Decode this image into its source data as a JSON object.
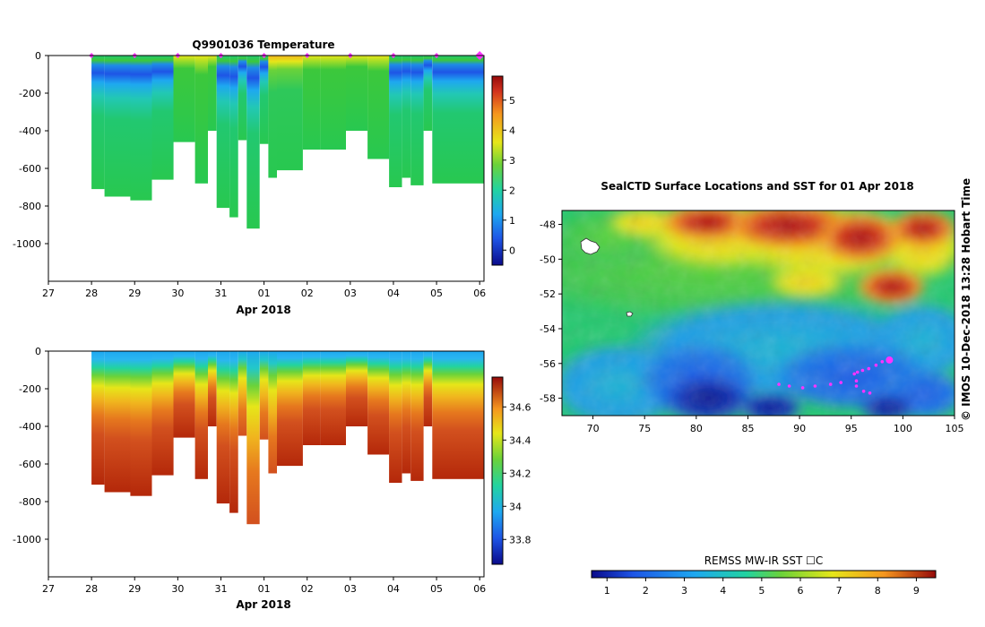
{
  "chart_data": [
    {
      "type": "heatmap",
      "panel": "temperature",
      "title": "Q9901036  Temperature",
      "xlabel": "Apr 2018",
      "ylabel": "",
      "x_tick_labels": [
        "27",
        "28",
        "29",
        "30",
        "31",
        "01",
        "02",
        "03",
        "04",
        "05",
        "06"
      ],
      "x_range_days": [
        27,
        37.1
      ],
      "y_tick_labels": [
        "0",
        "-200",
        "-400",
        "-600",
        "-800",
        "-1000"
      ],
      "y_range_m": [
        0,
        -1200
      ],
      "profile_start_days": [
        28,
        28.3,
        28.9,
        29.4,
        29.9,
        30.4,
        30.7,
        30.9,
        31.2,
        31.4,
        31.6,
        31.9,
        32.1,
        32.3,
        32.9,
        33.3,
        33.9,
        34.4,
        34.9,
        35.2,
        35.4,
        35.7,
        35.9
      ],
      "profile_max_depth_m": [
        -710,
        -750,
        -770,
        -660,
        -460,
        -680,
        -400,
        -810,
        -860,
        -450,
        -920,
        -470,
        -650,
        -610,
        -500,
        -500,
        -400,
        -550,
        -700,
        -650,
        -690,
        -400,
        -680
      ],
      "surface_markers_days": [
        28,
        29,
        30,
        31,
        32,
        33,
        34,
        35,
        36,
        37
      ],
      "marker_color": "#ff33ff",
      "colorbar_ticks": [
        "0",
        "1",
        "2",
        "3",
        "4",
        "5"
      ],
      "colorbar_range": [
        -0.5,
        5.8
      ]
    },
    {
      "type": "heatmap",
      "panel": "salinity",
      "title": "",
      "xlabel": "Apr 2018",
      "x_tick_labels": [
        "27",
        "28",
        "29",
        "30",
        "31",
        "01",
        "02",
        "03",
        "04",
        "05",
        "06"
      ],
      "y_tick_labels": [
        "0",
        "-200",
        "-400",
        "-600",
        "-800",
        "-1000"
      ],
      "y_range_m": [
        0,
        -1200
      ],
      "colorbar_ticks": [
        "33.8",
        "34",
        "34.2",
        "34.4",
        "34.6"
      ],
      "colorbar_range": [
        33.65,
        34.78
      ]
    },
    {
      "type": "heatmap",
      "panel": "sst_map",
      "title": "SealCTD Surface Locations and SST for 01 Apr 2018",
      "x_tick_labels": [
        "70",
        "75",
        "80",
        "85",
        "90",
        "95",
        "100",
        "105"
      ],
      "x_range_lon": [
        67,
        105
      ],
      "y_tick_labels": [
        "-48",
        "-50",
        "-52",
        "-54",
        "-56",
        "-58"
      ],
      "y_range_lat": [
        -59,
        -47.2
      ],
      "colorbar_title": "REMSS MW-IR SST ☐C",
      "colorbar_ticks": [
        "1",
        "2",
        "3",
        "4",
        "5",
        "6",
        "7",
        "8",
        "9"
      ],
      "colorbar_range": [
        0.6,
        9.5
      ],
      "side_label": "©  IMOS 10-Dec-2018 13:28 Hobart Time",
      "track_points": [
        [
          95.3,
          -56.6
        ],
        [
          95.6,
          -56.5
        ],
        [
          96.1,
          -56.4
        ],
        [
          96.7,
          -56.3
        ],
        [
          97.4,
          -56.1
        ],
        [
          98.0,
          -55.9
        ],
        [
          95.5,
          -57.0
        ],
        [
          95.5,
          -57.3
        ],
        [
          96.2,
          -57.6
        ],
        [
          96.8,
          -57.7
        ],
        [
          94.0,
          -57.1
        ],
        [
          93.0,
          -57.2
        ],
        [
          91.5,
          -57.3
        ],
        [
          90.3,
          -57.4
        ],
        [
          89.0,
          -57.3
        ],
        [
          88.0,
          -57.2
        ]
      ],
      "latest_position": [
        98.7,
        -55.8
      ]
    }
  ]
}
